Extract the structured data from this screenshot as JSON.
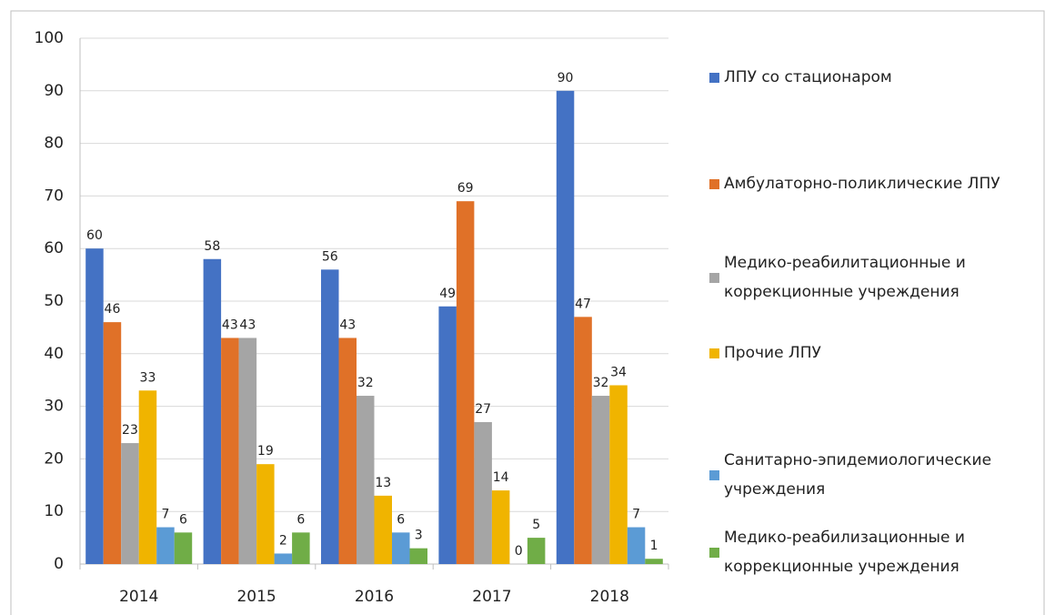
{
  "chart_data": {
    "type": "bar",
    "categories": [
      "2014",
      "2015",
      "2016",
      "2017",
      "2018"
    ],
    "series": [
      {
        "name": "ЛПУ со стационаром",
        "color": "#4472c4",
        "values": [
          60,
          58,
          56,
          49,
          90
        ]
      },
      {
        "name": "Амбулаторно-поликлические ЛПУ",
        "color": "#e07128",
        "values": [
          46,
          43,
          43,
          69,
          47
        ]
      },
      {
        "name": "Медико-реабилитационные и коррекционные учреждения",
        "color": "#a5a5a5",
        "values": [
          23,
          43,
          32,
          27,
          32
        ]
      },
      {
        "name": "Прочие ЛПУ",
        "color": "#f0b400",
        "values": [
          33,
          19,
          13,
          14,
          34
        ]
      },
      {
        "name": "Санитарно-эпидемиологические учреждения",
        "color": "#5b9bd5",
        "values": [
          7,
          2,
          6,
          0,
          7
        ]
      },
      {
        "name": "Медико-реабилизационные и коррекционные учреждения",
        "color": "#70ad47",
        "values": [
          6,
          6,
          3,
          5,
          1
        ]
      }
    ],
    "ylim": [
      0,
      100
    ],
    "yticks": [
      0,
      10,
      20,
      30,
      40,
      50,
      60,
      70,
      80,
      90,
      100
    ],
    "grid": true,
    "legend": "right"
  }
}
